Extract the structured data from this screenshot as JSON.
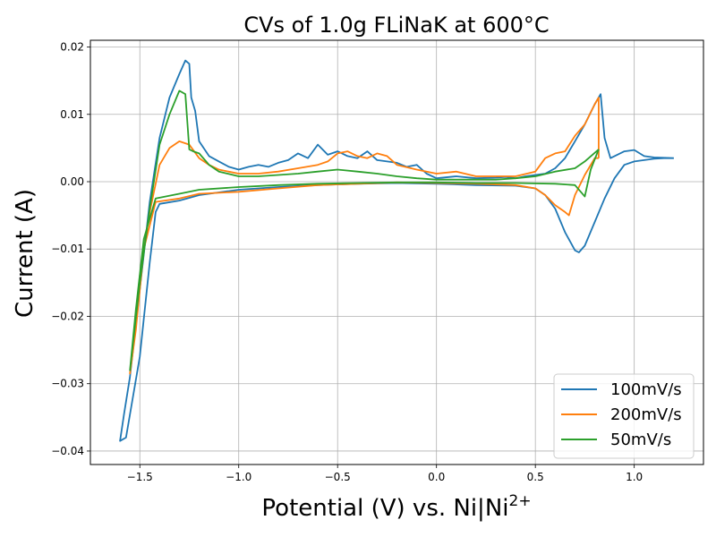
{
  "chart_data": {
    "type": "line",
    "title": "CVs of 1.0g FLiNaK at 600°C",
    "xlabel": "Potential (V) vs. Ni|Ni",
    "xlabel_sup": "2+",
    "ylabel": "Current (A)",
    "xlim": [
      -1.75,
      1.35
    ],
    "ylim": [
      -0.042,
      0.021
    ],
    "xticks": [
      -1.5,
      -1.0,
      -0.5,
      0.0,
      0.5,
      1.0
    ],
    "xtick_labels": [
      "−1.5",
      "−1.0",
      "−0.5",
      "0.0",
      "0.5",
      "1.0"
    ],
    "yticks": [
      -0.04,
      -0.03,
      -0.02,
      -0.01,
      0.0,
      0.01,
      0.02
    ],
    "ytick_labels": [
      "−0.04",
      "−0.03",
      "−0.02",
      "−0.01",
      "0.00",
      "0.01",
      "0.02"
    ],
    "grid": true,
    "legend_position": "lower-right",
    "series": [
      {
        "name": "100mV/s",
        "color": "#1f77b4",
        "points": [
          [
            1.2,
            0.0035
          ],
          [
            1.1,
            0.0036
          ],
          [
            1.05,
            0.0038
          ],
          [
            1.0,
            0.0047
          ],
          [
            0.95,
            0.0045
          ],
          [
            0.88,
            0.0035
          ],
          [
            0.85,
            0.0065
          ],
          [
            0.83,
            0.013
          ],
          [
            0.8,
            0.0115
          ],
          [
            0.75,
            0.0085
          ],
          [
            0.7,
            0.006
          ],
          [
            0.65,
            0.0035
          ],
          [
            0.6,
            0.002
          ],
          [
            0.55,
            0.0012
          ],
          [
            0.5,
            0.001
          ],
          [
            0.45,
            0.0008
          ],
          [
            0.4,
            0.0005
          ],
          [
            0.35,
            0.0007
          ],
          [
            0.3,
            0.0006
          ],
          [
            0.2,
            0.0005
          ],
          [
            0.1,
            0.0008
          ],
          [
            0.0,
            0.0005
          ],
          [
            -0.05,
            0.0012
          ],
          [
            -0.1,
            0.0025
          ],
          [
            -0.15,
            0.0022
          ],
          [
            -0.2,
            0.0028
          ],
          [
            -0.25,
            0.003
          ],
          [
            -0.3,
            0.0032
          ],
          [
            -0.35,
            0.0045
          ],
          [
            -0.4,
            0.0035
          ],
          [
            -0.45,
            0.0038
          ],
          [
            -0.5,
            0.0045
          ],
          [
            -0.55,
            0.004
          ],
          [
            -0.6,
            0.0055
          ],
          [
            -0.65,
            0.0035
          ],
          [
            -0.7,
            0.0042
          ],
          [
            -0.75,
            0.0032
          ],
          [
            -0.8,
            0.0028
          ],
          [
            -0.85,
            0.0022
          ],
          [
            -0.9,
            0.0025
          ],
          [
            -0.95,
            0.0022
          ],
          [
            -1.0,
            0.0018
          ],
          [
            -1.05,
            0.0022
          ],
          [
            -1.1,
            0.003
          ],
          [
            -1.15,
            0.0038
          ],
          [
            -1.2,
            0.006
          ],
          [
            -1.22,
            0.0105
          ],
          [
            -1.24,
            0.0125
          ],
          [
            -1.25,
            0.0175
          ],
          [
            -1.27,
            0.018
          ],
          [
            -1.3,
            0.016
          ],
          [
            -1.35,
            0.0125
          ],
          [
            -1.4,
            0.0065
          ],
          [
            -1.45,
            -0.003
          ],
          [
            -1.5,
            -0.016
          ],
          [
            -1.55,
            -0.029
          ],
          [
            -1.58,
            -0.0345
          ],
          [
            -1.6,
            -0.0385
          ],
          [
            -1.57,
            -0.038
          ],
          [
            -1.5,
            -0.026
          ],
          [
            -1.45,
            -0.012
          ],
          [
            -1.42,
            -0.0045
          ],
          [
            -1.4,
            -0.0033
          ],
          [
            -1.3,
            -0.0028
          ],
          [
            -1.2,
            -0.002
          ],
          [
            -1.0,
            -0.0012
          ],
          [
            -0.8,
            -0.0008
          ],
          [
            -0.6,
            -0.0005
          ],
          [
            -0.4,
            -0.0003
          ],
          [
            -0.2,
            -0.0002
          ],
          [
            0.0,
            -0.0003
          ],
          [
            0.2,
            -0.0005
          ],
          [
            0.4,
            -0.0006
          ],
          [
            0.5,
            -0.001
          ],
          [
            0.55,
            -0.002
          ],
          [
            0.6,
            -0.004
          ],
          [
            0.65,
            -0.0075
          ],
          [
            0.7,
            -0.0102
          ],
          [
            0.72,
            -0.0105
          ],
          [
            0.75,
            -0.0095
          ],
          [
            0.8,
            -0.006
          ],
          [
            0.85,
            -0.0025
          ],
          [
            0.9,
            0.0005
          ],
          [
            0.95,
            0.0025
          ],
          [
            1.0,
            0.003
          ],
          [
            1.05,
            0.0032
          ],
          [
            1.1,
            0.0034
          ],
          [
            1.15,
            0.0035
          ],
          [
            1.2,
            0.0035
          ]
        ]
      },
      {
        "name": "200mV/s",
        "color": "#ff7f0e",
        "points": [
          [
            0.82,
            0.0035
          ],
          [
            0.82,
            0.0125
          ],
          [
            0.8,
            0.0115
          ],
          [
            0.75,
            0.0085
          ],
          [
            0.7,
            0.0068
          ],
          [
            0.65,
            0.0045
          ],
          [
            0.6,
            0.0042
          ],
          [
            0.55,
            0.0035
          ],
          [
            0.5,
            0.0015
          ],
          [
            0.4,
            0.0008
          ],
          [
            0.3,
            0.0008
          ],
          [
            0.2,
            0.0008
          ],
          [
            0.1,
            0.0015
          ],
          [
            0.0,
            0.0012
          ],
          [
            -0.1,
            0.0018
          ],
          [
            -0.2,
            0.0025
          ],
          [
            -0.25,
            0.0038
          ],
          [
            -0.3,
            0.0042
          ],
          [
            -0.35,
            0.0035
          ],
          [
            -0.4,
            0.0038
          ],
          [
            -0.45,
            0.0045
          ],
          [
            -0.5,
            0.0042
          ],
          [
            -0.55,
            0.003
          ],
          [
            -0.6,
            0.0025
          ],
          [
            -0.7,
            0.002
          ],
          [
            -0.8,
            0.0015
          ],
          [
            -0.9,
            0.0012
          ],
          [
            -1.0,
            0.0012
          ],
          [
            -1.1,
            0.0018
          ],
          [
            -1.15,
            0.0025
          ],
          [
            -1.2,
            0.0035
          ],
          [
            -1.25,
            0.0055
          ],
          [
            -1.3,
            0.006
          ],
          [
            -1.35,
            0.005
          ],
          [
            -1.4,
            0.0025
          ],
          [
            -1.45,
            -0.0045
          ],
          [
            -1.5,
            -0.014
          ],
          [
            -1.55,
            -0.0285
          ],
          [
            -1.52,
            -0.022
          ],
          [
            -1.48,
            -0.01
          ],
          [
            -1.42,
            -0.003
          ],
          [
            -1.3,
            -0.0025
          ],
          [
            -1.2,
            -0.0018
          ],
          [
            -1.0,
            -0.0015
          ],
          [
            -0.8,
            -0.001
          ],
          [
            -0.6,
            -0.0005
          ],
          [
            -0.4,
            -0.0003
          ],
          [
            -0.2,
            -0.0001
          ],
          [
            0.0,
            -0.0002
          ],
          [
            0.2,
            -0.0003
          ],
          [
            0.4,
            -0.0005
          ],
          [
            0.5,
            -0.001
          ],
          [
            0.55,
            -0.002
          ],
          [
            0.6,
            -0.0035
          ],
          [
            0.65,
            -0.0045
          ],
          [
            0.67,
            -0.005
          ],
          [
            0.7,
            -0.002
          ],
          [
            0.75,
            0.001
          ],
          [
            0.8,
            0.0035
          ],
          [
            0.82,
            0.0035
          ]
        ]
      },
      {
        "name": "50mV/s",
        "color": "#2ca02c",
        "points": [
          [
            0.82,
            0.0048
          ],
          [
            0.75,
            0.003
          ],
          [
            0.7,
            0.002
          ],
          [
            0.6,
            0.0015
          ],
          [
            0.5,
            0.0008
          ],
          [
            0.4,
            0.0005
          ],
          [
            0.3,
            0.0003
          ],
          [
            0.2,
            0.0003
          ],
          [
            0.1,
            0.0003
          ],
          [
            0.0,
            0.0003
          ],
          [
            -0.1,
            0.0005
          ],
          [
            -0.2,
            0.0008
          ],
          [
            -0.3,
            0.0012
          ],
          [
            -0.4,
            0.0015
          ],
          [
            -0.5,
            0.0018
          ],
          [
            -0.6,
            0.0015
          ],
          [
            -0.7,
            0.0012
          ],
          [
            -0.8,
            0.001
          ],
          [
            -0.9,
            0.0008
          ],
          [
            -1.0,
            0.0008
          ],
          [
            -1.1,
            0.0015
          ],
          [
            -1.15,
            0.0025
          ],
          [
            -1.2,
            0.0042
          ],
          [
            -1.23,
            0.0045
          ],
          [
            -1.25,
            0.0048
          ],
          [
            -1.27,
            0.013
          ],
          [
            -1.3,
            0.0135
          ],
          [
            -1.35,
            0.01
          ],
          [
            -1.4,
            0.0055
          ],
          [
            -1.45,
            -0.004
          ],
          [
            -1.5,
            -0.015
          ],
          [
            -1.55,
            -0.028
          ],
          [
            -1.52,
            -0.019
          ],
          [
            -1.48,
            -0.0085
          ],
          [
            -1.42,
            -0.0025
          ],
          [
            -1.3,
            -0.0018
          ],
          [
            -1.2,
            -0.0012
          ],
          [
            -1.0,
            -0.0008
          ],
          [
            -0.8,
            -0.0005
          ],
          [
            -0.6,
            -0.0003
          ],
          [
            -0.4,
            -0.0002
          ],
          [
            -0.2,
            -0.0001
          ],
          [
            0.0,
            -0.0001
          ],
          [
            0.2,
            -0.0002
          ],
          [
            0.4,
            -0.0002
          ],
          [
            0.6,
            -0.0003
          ],
          [
            0.7,
            -0.0005
          ],
          [
            0.75,
            -0.0022
          ],
          [
            0.78,
            0.0018
          ],
          [
            0.82,
            0.0048
          ]
        ]
      }
    ]
  }
}
